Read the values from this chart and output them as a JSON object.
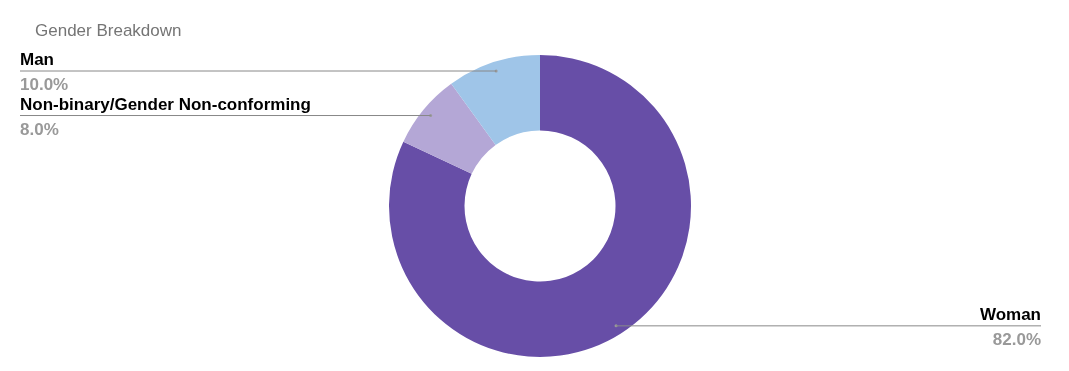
{
  "chart_data": {
    "type": "donut",
    "title": "Gender Breakdown",
    "categories": [
      "Woman",
      "Non-binary/Gender Non-conforming",
      "Man"
    ],
    "values": [
      82,
      8,
      10
    ],
    "colors": [
      "#674ea7",
      "#b4a7d6",
      "#9fc5e8"
    ],
    "value_labels": [
      "82.0%",
      "8.0%",
      "10.0%"
    ]
  }
}
